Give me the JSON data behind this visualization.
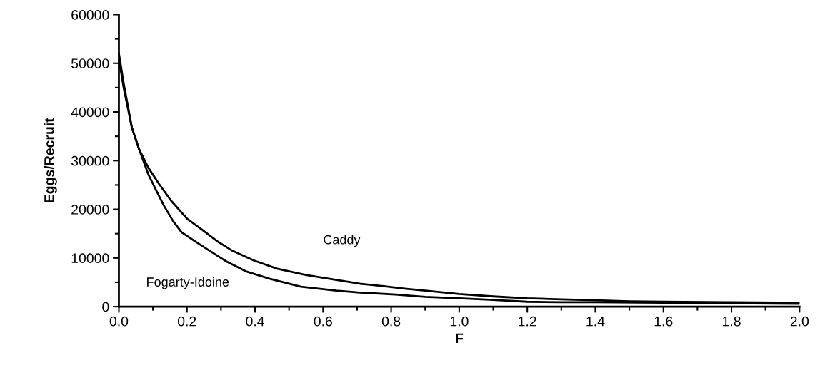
{
  "chart_data": {
    "type": "line",
    "xlabel": "F",
    "ylabel": "Eggs/Recruit",
    "series": [
      {
        "name": "Caddy",
        "color": "#000000",
        "x": [
          0,
          0.014,
          0.038,
          0.059,
          0.087,
          0.118,
          0.153,
          0.2,
          0.243,
          0.292,
          0.333,
          0.396,
          0.465,
          0.549,
          0.639,
          0.708,
          0.778,
          0.84,
          0.9,
          1.0,
          1.1,
          1.2,
          1.3,
          1.4,
          1.5,
          1.6,
          1.8,
          2.0
        ],
        "values": [
          52000,
          45900,
          36800,
          32400,
          28500,
          25200,
          21800,
          18100,
          15900,
          13300,
          11500,
          9500,
          7800,
          6500,
          5500,
          4700,
          4200,
          3700,
          3300,
          2600,
          2100,
          1700,
          1500,
          1300,
          1100,
          1000,
          900,
          800
        ]
      },
      {
        "name": "Fogarty-Idoine",
        "color": "#000000",
        "x": [
          0,
          0.014,
          0.038,
          0.059,
          0.087,
          0.111,
          0.132,
          0.16,
          0.184,
          0.222,
          0.264,
          0.313,
          0.375,
          0.444,
          0.535,
          0.639,
          0.708,
          0.813,
          0.9,
          1.0,
          1.1,
          1.2,
          1.3,
          1.4,
          1.6,
          1.8,
          2.0
        ],
        "values": [
          51000,
          45000,
          36800,
          32400,
          27100,
          23700,
          20800,
          17500,
          15300,
          13500,
          11600,
          9400,
          7200,
          5700,
          4100,
          3300,
          2900,
          2500,
          2000,
          1700,
          1400,
          1000,
          900,
          900,
          800,
          700,
          600
        ]
      }
    ],
    "xlim": [
      0,
      2.0
    ],
    "xticks": [
      {
        "value": 0,
        "label": "0.0"
      },
      {
        "value": 0.1,
        "label": null
      },
      {
        "value": 0.2,
        "label": "0.2"
      },
      {
        "value": 0.3,
        "label": null
      },
      {
        "value": 0.4,
        "label": "0.4"
      },
      {
        "value": 0.5,
        "label": null
      },
      {
        "value": 0.6,
        "label": "0.6"
      },
      {
        "value": 0.7,
        "label": null
      },
      {
        "value": 0.8,
        "label": "0.8"
      },
      {
        "value": 0.9,
        "label": null
      },
      {
        "value": 1.0,
        "label": "1.0"
      },
      {
        "value": 1.1,
        "label": null
      },
      {
        "value": 1.2,
        "label": "1.2"
      },
      {
        "value": 1.3,
        "label": null
      },
      {
        "value": 1.4,
        "label": "1.4"
      },
      {
        "value": 1.5,
        "label": null
      },
      {
        "value": 1.6,
        "label": "1.6"
      },
      {
        "value": 1.7,
        "label": null
      },
      {
        "value": 1.8,
        "label": "1.8"
      },
      {
        "value": 1.9,
        "label": null
      },
      {
        "value": 2.0,
        "label": "2.0"
      }
    ],
    "ylim": [
      0,
      60000
    ],
    "yticks": [
      0,
      {
        "value": 5000,
        "label": null
      },
      10000,
      {
        "value": 15000,
        "label": null
      },
      20000,
      {
        "value": 25000,
        "label": null
      },
      30000,
      {
        "value": 35000,
        "label": null
      },
      40000,
      {
        "value": 45000,
        "label": null
      },
      50000,
      {
        "value": 55000,
        "label": null
      },
      60000
    ],
    "grid": false,
    "legend": false,
    "marker": "none",
    "line_style": "solid"
  }
}
